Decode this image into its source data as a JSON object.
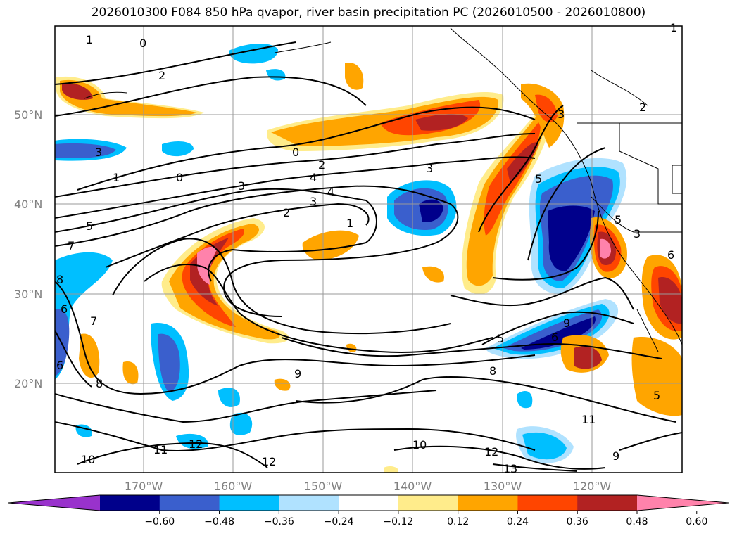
{
  "title": "2026010300 F084 850 hPa qvapor, river basin precipitation PC (2026010500 - 2026010800)",
  "lat_labels": [
    "50°N",
    "40°N",
    "30°N",
    "20°N"
  ],
  "lon_labels": [
    "170°W",
    "160°W",
    "150°W",
    "140°W",
    "130°W",
    "120°W"
  ],
  "colorbar": {
    "ticks": [
      "−0.60",
      "−0.48",
      "−0.36",
      "−0.24",
      "−0.12",
      "0.12",
      "0.24",
      "0.36",
      "0.48",
      "0.60"
    ],
    "colors": [
      "#9932cc",
      "#00008b",
      "#3a5fcd",
      "#00bfff",
      "#b0e2ff",
      "#ffffff",
      "#ffec8b",
      "#ffa500",
      "#ff4500",
      "#b22222",
      "#ff82ab"
    ],
    "extend": "both"
  },
  "contour_labels": [
    "1",
    "0",
    "2",
    "3",
    "1",
    "0",
    "0",
    "2",
    "3",
    "4",
    "4",
    "3",
    "2",
    "1",
    "5",
    "3",
    "5",
    "7",
    "8",
    "6",
    "7",
    "6",
    "8",
    "9",
    "8",
    "5",
    "6",
    "9",
    "10",
    "11",
    "12",
    "12",
    "10",
    "12",
    "13",
    "11",
    "9",
    "5",
    "5",
    "3",
    "2",
    "1",
    "3",
    "6"
  ],
  "palette": {
    "neg_strong": "#00008b",
    "neg_mid": "#3a5fcd",
    "neg_light": "#00bfff",
    "neg_faint": "#b0e2ff",
    "pos_faint": "#ffec8b",
    "pos_light": "#ffa500",
    "pos_mid": "#ff4500",
    "pos_strong": "#b22222",
    "pos_max": "#ff82ab"
  }
}
